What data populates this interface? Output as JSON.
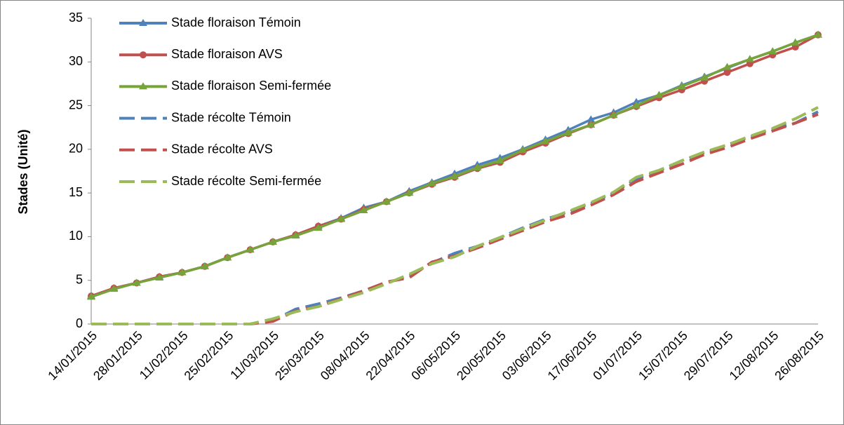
{
  "chart_data": {
    "type": "line",
    "y_label": "Stades (Unité)",
    "categories": [
      "14/01/2015",
      null,
      "28/01/2015",
      null,
      "11/02/2015",
      null,
      "25/02/2015",
      null,
      "11/03/2015",
      null,
      "25/03/2015",
      null,
      "08/04/2015",
      null,
      "22/04/2015",
      null,
      "06/05/2015",
      null,
      "20/05/2015",
      null,
      "03/06/2015",
      null,
      "17/06/2015",
      null,
      "01/07/2015",
      null,
      "15/07/2015",
      null,
      "29/07/2015",
      null,
      "12/08/2015",
      null,
      "26/08/2015"
    ],
    "ylim": [
      0,
      35
    ],
    "yticks": [
      0,
      5,
      10,
      15,
      20,
      25,
      30,
      35
    ],
    "grid": false,
    "legend": "top-left",
    "series": [
      {
        "name": "Stade floraison Témoin",
        "color": "#4f81bd",
        "marker": "triangle",
        "dashed": false,
        "values": [
          3.2,
          4.1,
          4.7,
          5.4,
          5.9,
          6.6,
          7.6,
          8.5,
          9.4,
          10.2,
          11.2,
          12.1,
          13.3,
          14.0,
          15.2,
          16.2,
          17.2,
          18.2,
          19.0,
          20.0,
          21.1,
          22.2,
          23.4,
          24.2,
          25.4,
          26.2,
          27.3,
          28.3,
          29.3,
          30.3,
          31.2,
          32.2,
          33.1
        ]
      },
      {
        "name": "Stade floraison AVS",
        "color": "#c0504d",
        "marker": "circle",
        "dashed": false,
        "values": [
          3.2,
          4.1,
          4.7,
          5.4,
          5.9,
          6.6,
          7.6,
          8.5,
          9.4,
          10.2,
          11.2,
          12.0,
          13.1,
          14.0,
          15.0,
          16.0,
          16.8,
          17.8,
          18.5,
          19.7,
          20.7,
          21.8,
          22.8,
          23.9,
          24.9,
          25.9,
          26.8,
          27.8,
          28.8,
          29.8,
          30.8,
          31.7,
          33.1
        ]
      },
      {
        "name": "Stade floraison Semi-fermée",
        "color": "#77a33b",
        "marker": "triangle",
        "dashed": false,
        "values": [
          3.1,
          4.0,
          4.7,
          5.3,
          5.9,
          6.6,
          7.6,
          8.5,
          9.4,
          10.1,
          11.0,
          12.0,
          13.0,
          14.0,
          15.0,
          16.1,
          16.9,
          17.9,
          18.7,
          19.9,
          20.9,
          21.9,
          22.8,
          23.9,
          25.0,
          26.2,
          27.2,
          28.2,
          29.4,
          30.3,
          31.2,
          32.2,
          33.1
        ]
      },
      {
        "name": "Stade récolte Témoin",
        "color": "#4f81bd",
        "marker": "none",
        "dashed": true,
        "values": [
          0,
          0,
          0,
          0,
          0,
          0,
          0,
          0,
          0.4,
          1.7,
          2.3,
          3.0,
          3.8,
          4.7,
          5.5,
          7.0,
          8.1,
          8.9,
          9.9,
          11.0,
          12.0,
          12.8,
          13.8,
          15.0,
          16.6,
          17.5,
          18.7,
          19.6,
          20.5,
          21.4,
          22.3,
          23.0,
          24.3
        ]
      },
      {
        "name": "Stade récolte AVS",
        "color": "#c0504d",
        "marker": "none",
        "dashed": true,
        "values": [
          0,
          0,
          0,
          0,
          0,
          0,
          0,
          0,
          0.3,
          1.5,
          2.0,
          2.9,
          3.8,
          4.8,
          5.3,
          7.1,
          7.8,
          8.7,
          9.7,
          10.7,
          11.7,
          12.5,
          13.6,
          14.8,
          16.3,
          17.3,
          18.3,
          19.4,
          20.2,
          21.2,
          22.1,
          23.0,
          24.0
        ]
      },
      {
        "name": "Stade récolte Semi-fermée",
        "color": "#9bbb59",
        "marker": "none",
        "dashed": true,
        "values": [
          0,
          0,
          0,
          0,
          0,
          0,
          0,
          0,
          0.6,
          1.4,
          2.0,
          2.8,
          3.6,
          4.6,
          5.7,
          6.9,
          7.7,
          8.9,
          9.9,
          10.9,
          11.9,
          12.9,
          13.9,
          15.1,
          16.8,
          17.6,
          18.7,
          19.7,
          20.5,
          21.5,
          22.4,
          23.5,
          24.8
        ]
      }
    ]
  }
}
